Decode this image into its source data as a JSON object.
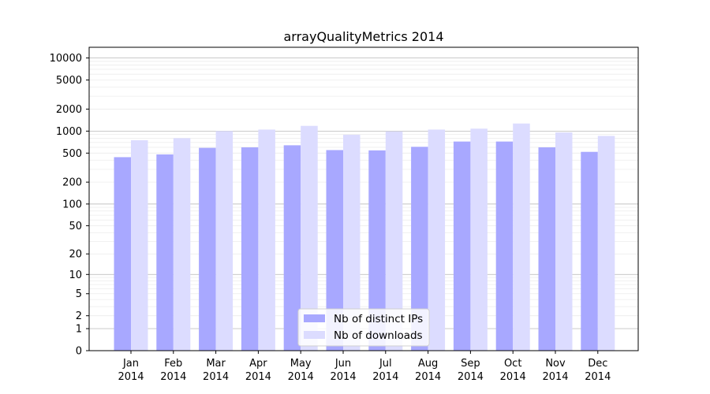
{
  "chart_data": {
    "type": "bar",
    "title": "arrayQualityMetrics 2014",
    "xlabel": "",
    "ylabel": "",
    "scale": "symlog",
    "categories": [
      [
        "Jan",
        "2014"
      ],
      [
        "Feb",
        "2014"
      ],
      [
        "Mar",
        "2014"
      ],
      [
        "Apr",
        "2014"
      ],
      [
        "May",
        "2014"
      ],
      [
        "Jun",
        "2014"
      ],
      [
        "Jul",
        "2014"
      ],
      [
        "Aug",
        "2014"
      ],
      [
        "Sep",
        "2014"
      ],
      [
        "Oct",
        "2014"
      ],
      [
        "Nov",
        "2014"
      ],
      [
        "Dec",
        "2014"
      ]
    ],
    "series": [
      {
        "name": "Nb of distinct IPs",
        "color": "#a8a8ff",
        "values": [
          440,
          480,
          590,
          600,
          640,
          550,
          545,
          610,
          720,
          720,
          600,
          520
        ]
      },
      {
        "name": "Nb of downloads",
        "color": "#dcdcff",
        "values": [
          750,
          800,
          1000,
          1050,
          1180,
          890,
          990,
          1050,
          1080,
          1270,
          960,
          860
        ]
      }
    ],
    "yticks": [
      "0",
      "1",
      "2",
      "5",
      "10",
      "20",
      "50",
      "100",
      "200",
      "500",
      "1000",
      "2000",
      "5000",
      "10000"
    ],
    "ylim": [
      0,
      14000
    ],
    "grid": true,
    "legend_position": "bottom-center"
  }
}
